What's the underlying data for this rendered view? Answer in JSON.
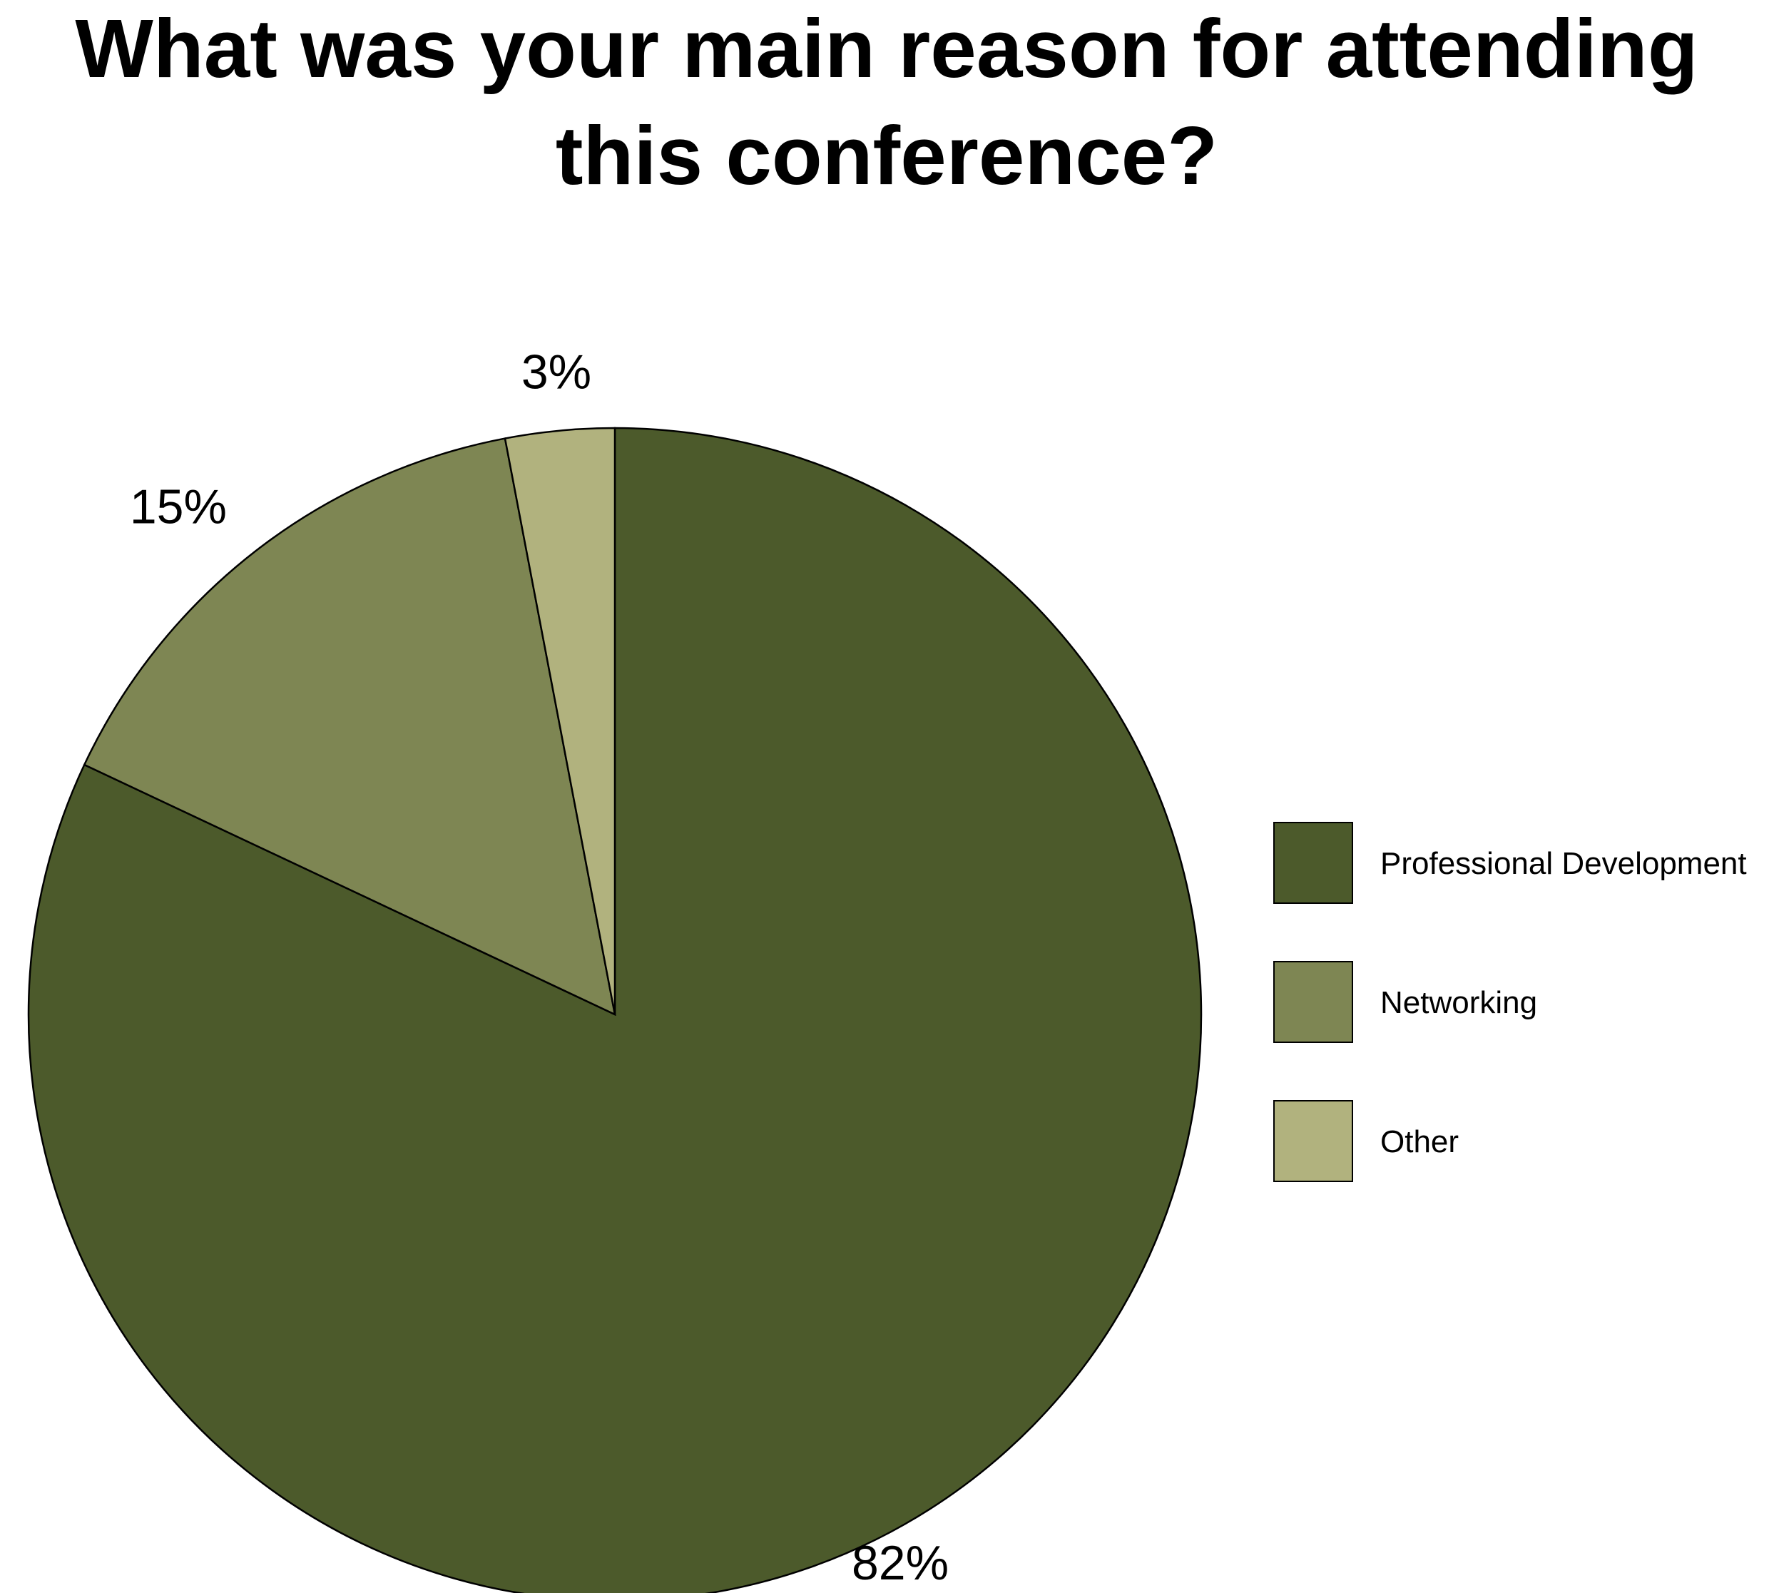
{
  "chart_data": {
    "type": "pie",
    "title_lines": [
      "What was your main reason for attending",
      "this conference?"
    ],
    "categories": [
      "Professional Development",
      "Networking",
      "Other"
    ],
    "values": [
      82,
      15,
      3
    ],
    "value_labels": [
      "82%",
      "15%",
      "3%"
    ],
    "colors": [
      "#4c5a2b",
      "#7e8653",
      "#b1b27e"
    ],
    "legend_position": "right",
    "start_angle": "12 o'clock",
    "direction": "clockwise"
  }
}
